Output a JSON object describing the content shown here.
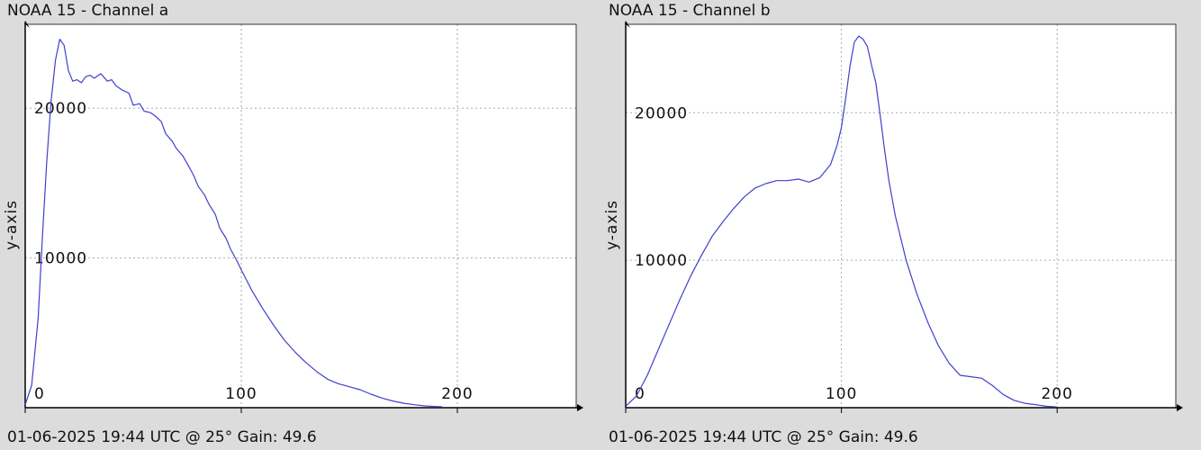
{
  "chart_data": [
    {
      "type": "line",
      "title": "NOAA 15 - Channel a",
      "footer": "01-06-2025 19:44 UTC @ 25° Gain: 49.6",
      "ylabel": "y-axis",
      "xlim": [
        0,
        255
      ],
      "ylim": [
        0,
        25600
      ],
      "x_ticks": [
        0,
        100,
        200
      ],
      "y_ticks": [
        10000,
        20000
      ],
      "grid": true,
      "line_color": "#4040cc",
      "series": [
        {
          "x": [
            0,
            3,
            6,
            8,
            10,
            12,
            14,
            16,
            18,
            20,
            22,
            24,
            26,
            28,
            30,
            32,
            35,
            38,
            40,
            42,
            45,
            48,
            50,
            53,
            55,
            58,
            60,
            63,
            65,
            68,
            70,
            73,
            75,
            78,
            80,
            83,
            85,
            88,
            90,
            93,
            95,
            98,
            100,
            105,
            110,
            115,
            120,
            125,
            130,
            135,
            140,
            145,
            150,
            155,
            160,
            165,
            170,
            175,
            180,
            185,
            190,
            193
          ],
          "y": [
            200,
            1500,
            6000,
            11500,
            16500,
            20500,
            23200,
            24600,
            24200,
            22500,
            21800,
            21900,
            21700,
            22100,
            22200,
            22000,
            22300,
            21800,
            21900,
            21500,
            21200,
            21000,
            20200,
            20300,
            19800,
            19700,
            19500,
            19100,
            18300,
            17800,
            17300,
            16800,
            16300,
            15500,
            14800,
            14200,
            13600,
            12900,
            12000,
            11300,
            10600,
            9800,
            9200,
            7800,
            6600,
            5500,
            4500,
            3700,
            3000,
            2400,
            1900,
            1600,
            1400,
            1200,
            900,
            650,
            450,
            300,
            200,
            120,
            80,
            60
          ]
        }
      ]
    },
    {
      "type": "line",
      "title": "NOAA 15 - Channel b",
      "footer": "01-06-2025 19:44 UTC @ 25° Gain: 49.6",
      "ylabel": "y-axis",
      "xlim": [
        0,
        255
      ],
      "ylim": [
        0,
        26000
      ],
      "x_ticks": [
        0,
        100,
        200
      ],
      "y_ticks": [
        10000,
        20000
      ],
      "grid": true,
      "line_color": "#4040cc",
      "series": [
        {
          "x": [
            0,
            5,
            10,
            15,
            20,
            25,
            30,
            35,
            40,
            45,
            50,
            55,
            60,
            65,
            70,
            75,
            80,
            85,
            90,
            95,
            98,
            100,
            102,
            104,
            106,
            108,
            110,
            112,
            114,
            116,
            118,
            120,
            122,
            125,
            128,
            130,
            135,
            140,
            145,
            150,
            155,
            160,
            165,
            170,
            175,
            180,
            185,
            190,
            195,
            200
          ],
          "y": [
            100,
            800,
            2200,
            3900,
            5600,
            7300,
            8900,
            10300,
            11600,
            12600,
            13500,
            14300,
            14900,
            15200,
            15400,
            15400,
            15500,
            15300,
            15600,
            16500,
            17800,
            19000,
            21000,
            23200,
            24800,
            25200,
            25000,
            24500,
            23200,
            22000,
            19800,
            17500,
            15400,
            13000,
            11200,
            10000,
            7700,
            5800,
            4200,
            3000,
            2200,
            2100,
            2000,
            1500,
            900,
            500,
            300,
            200,
            100,
            50
          ]
        }
      ]
    }
  ]
}
